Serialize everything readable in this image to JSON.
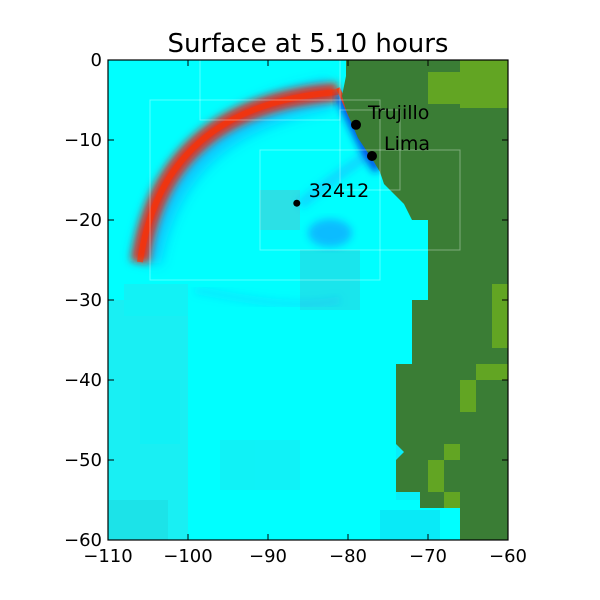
{
  "chart_data": {
    "type": "heatmap",
    "title": "Surface at 5.10 hours",
    "xlabel": "",
    "ylabel": "",
    "xlim": [
      -110,
      -60
    ],
    "ylim": [
      -60,
      0
    ],
    "x_ticks": [
      -110,
      -100,
      -90,
      -80,
      -70,
      -60
    ],
    "y_ticks": [
      0,
      -10,
      -20,
      -30,
      -40,
      -50,
      -60
    ],
    "x_tick_labels": [
      "−110",
      "−100",
      "−90",
      "−80",
      "−70",
      "−60"
    ],
    "y_tick_labels": [
      "0",
      "−10",
      "−20",
      "−30",
      "−40",
      "−50",
      "−60"
    ],
    "grid": false,
    "colors": {
      "ocean": "#00ffff",
      "ocean_deep": "#33d6e0",
      "land": "#3a7d35",
      "land_light": "#62a523",
      "wave_crest": "#ff1a00",
      "wave_trough": "#1a5cff",
      "marker": "#000000"
    },
    "locations": [
      {
        "name": "Trujillo",
        "lon": -79.0,
        "lat": -8.1
      },
      {
        "name": "Lima",
        "lon": -77.0,
        "lat": -12.0
      },
      {
        "name": "32412",
        "lon": -86.4,
        "lat": -17.9
      }
    ]
  }
}
